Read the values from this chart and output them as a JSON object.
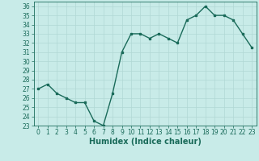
{
  "x": [
    0,
    1,
    2,
    3,
    4,
    5,
    6,
    7,
    8,
    9,
    10,
    11,
    12,
    13,
    14,
    15,
    16,
    17,
    18,
    19,
    20,
    21,
    22,
    23
  ],
  "y": [
    27,
    27.5,
    26.5,
    26,
    25.5,
    25.5,
    23.5,
    23,
    26.5,
    31,
    33,
    33,
    32.5,
    33,
    32.5,
    32,
    34.5,
    35,
    36,
    35,
    35,
    34.5,
    33,
    31.5
  ],
  "line_color": "#1a6b5a",
  "marker": "s",
  "marker_size": 1.8,
  "bg_color": "#c8ebe8",
  "grid_color": "#b0d8d4",
  "xlabel": "Humidex (Indice chaleur)",
  "ylim": [
    23,
    36.5
  ],
  "xlim": [
    -0.5,
    23.5
  ],
  "yticks": [
    23,
    24,
    25,
    26,
    27,
    28,
    29,
    30,
    31,
    32,
    33,
    34,
    35,
    36
  ],
  "xticks": [
    0,
    1,
    2,
    3,
    4,
    5,
    6,
    7,
    8,
    9,
    10,
    11,
    12,
    13,
    14,
    15,
    16,
    17,
    18,
    19,
    20,
    21,
    22,
    23
  ],
  "tick_fontsize": 5.5,
  "xlabel_fontsize": 7,
  "linewidth": 1.0
}
